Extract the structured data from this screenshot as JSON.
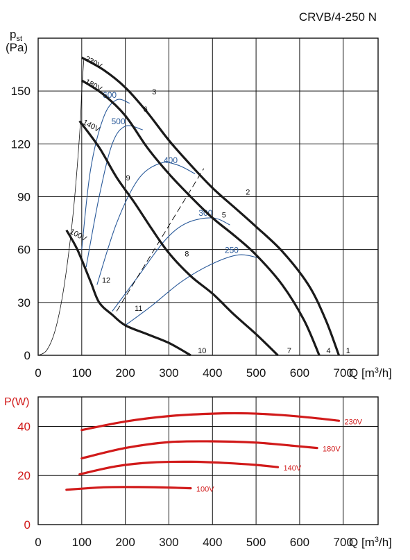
{
  "chart_data": [
    {
      "type": "line",
      "title": "CRVB/4-250 N",
      "ylabel": "pst",
      "ylabel_sub": "st",
      "ylabel_main": "p",
      "yunit": "(Pa)",
      "xlabel": "Q [m³/h]",
      "xlabel_q": "Q",
      "xlabel_unit_a": "[m",
      "xlabel_unit_sup": "3",
      "xlabel_unit_b": "/h]",
      "xlim": [
        0,
        780
      ],
      "ylim": [
        0,
        180
      ],
      "grid": true,
      "x_ticks": [
        "0",
        "100",
        "200",
        "300",
        "400",
        "500",
        "600",
        "700"
      ],
      "y_ticks": [
        "0",
        "30",
        "60",
        "90",
        "120",
        "150"
      ],
      "curve_color": "#1a1a1a",
      "iso_color": "#2a5a9a",
      "series": [
        {
          "name": "230V",
          "points": [
            [
              100,
              169
            ],
            [
              150,
              162
            ],
            [
              200,
              152
            ],
            [
              250,
              138
            ],
            [
              300,
              122
            ],
            [
              350,
              108
            ],
            [
              400,
              95
            ],
            [
              450,
              84
            ],
            [
              500,
              73
            ],
            [
              560,
              59
            ],
            [
              620,
              40
            ],
            [
              660,
              20
            ],
            [
              690,
              0
            ]
          ]
        },
        {
          "name": "180V",
          "points": [
            [
              100,
              156
            ],
            [
              150,
              148
            ],
            [
              200,
              136
            ],
            [
              250,
              118
            ],
            [
              300,
              103
            ],
            [
              350,
              90
            ],
            [
              400,
              78
            ],
            [
              450,
              68
            ],
            [
              500,
              57
            ],
            [
              560,
              40
            ],
            [
              610,
              20
            ],
            [
              645,
              0
            ]
          ]
        },
        {
          "name": "140V",
          "points": [
            [
              95,
              133
            ],
            [
              140,
              118
            ],
            [
              180,
              101
            ],
            [
              220,
              87
            ],
            [
              260,
              72
            ],
            [
              300,
              58
            ],
            [
              350,
              45
            ],
            [
              400,
              35
            ],
            [
              450,
              23
            ],
            [
              500,
              12
            ],
            [
              550,
              0
            ]
          ]
        },
        {
          "name": "100V",
          "points": [
            [
              65,
              71
            ],
            [
              90,
              60
            ],
            [
              120,
              42
            ],
            [
              140,
              30
            ],
            [
              170,
              23
            ],
            [
              200,
              17
            ],
            [
              250,
              12
            ],
            [
              300,
              7
            ],
            [
              350,
              0
            ]
          ]
        }
      ],
      "curve_labels": [
        "230V",
        "180V",
        "140V",
        "100V"
      ],
      "iso_curves": [
        {
          "label": "600",
          "points": [
            [
              100,
              60
            ],
            [
              120,
              105
            ],
            [
              150,
              135
            ],
            [
              180,
              145
            ],
            [
              210,
              143
            ]
          ]
        },
        {
          "label": "500",
          "points": [
            [
              110,
              50
            ],
            [
              140,
              90
            ],
            [
              170,
              120
            ],
            [
              200,
              130
            ],
            [
              240,
              128
            ]
          ]
        },
        {
          "label": "400",
          "points": [
            [
              135,
              40
            ],
            [
              180,
              75
            ],
            [
              230,
              100
            ],
            [
              280,
              109
            ],
            [
              320,
              108
            ],
            [
              360,
              103
            ]
          ]
        },
        {
          "label": "300",
          "points": [
            [
              170,
              25
            ],
            [
              230,
              45
            ],
            [
              290,
              65
            ],
            [
              340,
              75
            ],
            [
              400,
              78
            ],
            [
              440,
              74
            ]
          ]
        },
        {
          "label": "250",
          "points": [
            [
              200,
              17
            ],
            [
              260,
              28
            ],
            [
              330,
              42
            ],
            [
              400,
              52
            ],
            [
              460,
              57
            ],
            [
              510,
              55
            ]
          ]
        }
      ],
      "point_labels": [
        "1",
        "2",
        "3",
        "4",
        "5",
        "6",
        "7",
        "8",
        "9",
        "10",
        "11",
        "12"
      ],
      "point_coords": [
        [
          700,
          0
        ],
        [
          470,
          90
        ],
        [
          255,
          147
        ],
        [
          655,
          0
        ],
        [
          415,
          77
        ],
        [
          235,
          137
        ],
        [
          565,
          0
        ],
        [
          330,
          55
        ],
        [
          195,
          98
        ],
        [
          360,
          0
        ],
        [
          215,
          24
        ],
        [
          140,
          40
        ]
      ]
    },
    {
      "type": "line",
      "ylabel": "P(W)",
      "xlabel": "Q [m³/h]",
      "xlabel_q": "Q",
      "xlabel_unit_a": "[m",
      "xlabel_unit_sup": "3",
      "xlabel_unit_b": "/h]",
      "xlim": [
        0,
        780
      ],
      "ylim": [
        0,
        52
      ],
      "grid": true,
      "x_ticks": [
        "0",
        "100",
        "200",
        "300",
        "400",
        "500",
        "600",
        "700"
      ],
      "y_ticks": [
        "0",
        "20",
        "40"
      ],
      "line_color": "#d11a1a",
      "series": [
        {
          "name": "230V",
          "points": [
            [
              100,
              38.5
            ],
            [
              200,
              42
            ],
            [
              300,
              44.2
            ],
            [
              400,
              45.2
            ],
            [
              480,
              45.3
            ],
            [
              560,
              44.6
            ],
            [
              640,
              43.3
            ],
            [
              690,
              42.3
            ]
          ]
        },
        {
          "name": "180V",
          "points": [
            [
              100,
              27
            ],
            [
              200,
              31.2
            ],
            [
              300,
              33.6
            ],
            [
              400,
              33.9
            ],
            [
              500,
              33.4
            ],
            [
              580,
              32.2
            ],
            [
              640,
              31.2
            ]
          ]
        },
        {
          "name": "140V",
          "points": [
            [
              95,
              20.5
            ],
            [
              180,
              23.8
            ],
            [
              260,
              25.3
            ],
            [
              350,
              25.6
            ],
            [
              430,
              25.1
            ],
            [
              500,
              24.3
            ],
            [
              550,
              23.4
            ]
          ]
        },
        {
          "name": "100V",
          "points": [
            [
              65,
              14.2
            ],
            [
              150,
              15.2
            ],
            [
              230,
              15.3
            ],
            [
              300,
              15.1
            ],
            [
              350,
              14.8
            ]
          ]
        }
      ]
    }
  ]
}
